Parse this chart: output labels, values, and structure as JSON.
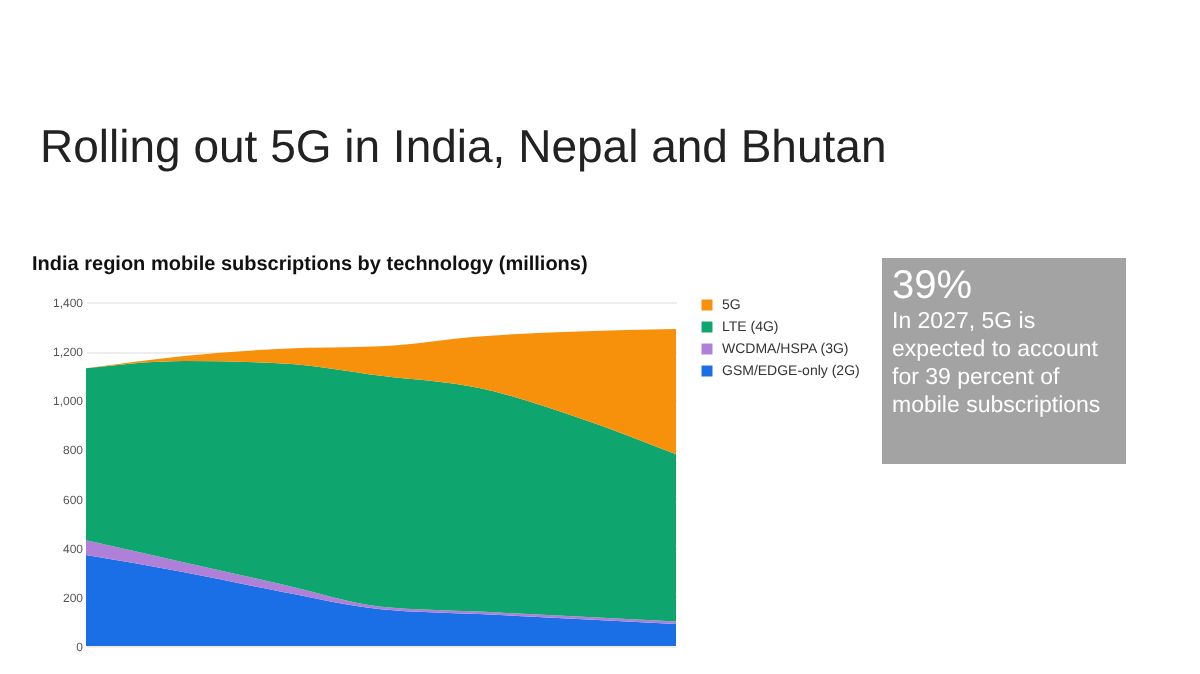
{
  "chart_data": {
    "type": "area",
    "title": "Rolling out 5G in India, Nepal and Bhutan",
    "subtitle": "India region mobile subscriptions by technology (millions)",
    "categories": [
      null,
      null,
      null,
      null,
      null,
      null,
      null
    ],
    "stacked": true,
    "series": [
      {
        "name": "GSM/EDGE-only (2G)",
        "color": "#1a6ee6",
        "values": [
          370,
          300,
          220,
          150,
          130,
          110,
          90
        ]
      },
      {
        "name": "WCDMA/HSPA (3G)",
        "color": "#b07fd8",
        "values": [
          60,
          40,
          30,
          10,
          10,
          10,
          10
        ]
      },
      {
        "name": "LTE (4G)",
        "color": "#0ea66e",
        "values": [
          700,
          820,
          900,
          940,
          910,
          810,
          680
        ]
      },
      {
        "name": "5G",
        "color": "#f7900a",
        "values": [
          0,
          20,
          60,
          120,
          210,
          350,
          510
        ]
      }
    ],
    "ylim": [
      0,
      1400
    ],
    "yticks": [
      0,
      200,
      400,
      600,
      800,
      {
        "value": 1000,
        "label": "1,000"
      },
      {
        "value": 1200,
        "label": "1,200"
      },
      {
        "value": 1400,
        "label": "1,400"
      }
    ],
    "grid": "y",
    "legend": "right",
    "tick_labels": "y",
    "annotations": [
      "39%",
      "In 2027, 5G is expected to account for 39 percent of mobile subscriptions"
    ]
  }
}
